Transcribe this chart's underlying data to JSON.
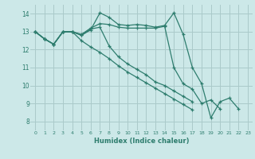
{
  "xlabel": "Humidex (Indice chaleur)",
  "bg_color": "#cce8e8",
  "grid_color": "#aacaca",
  "line_color": "#2e7d6e",
  "xlim": [
    -0.5,
    23.5
  ],
  "ylim": [
    7.5,
    14.5
  ],
  "yticks": [
    8,
    9,
    10,
    11,
    12,
    13,
    14
  ],
  "xticks": [
    0,
    1,
    2,
    3,
    4,
    5,
    6,
    7,
    8,
    9,
    10,
    11,
    12,
    13,
    14,
    15,
    16,
    17,
    18,
    19,
    20,
    21,
    22,
    23
  ],
  "series": [
    [
      13.0,
      12.6,
      12.3,
      13.0,
      13.0,
      12.8,
      13.1,
      14.05,
      13.8,
      13.4,
      13.35,
      13.4,
      13.35,
      13.25,
      13.35,
      14.05,
      12.85,
      11.0,
      10.1,
      8.2,
      9.1,
      9.3,
      8.7,
      null
    ],
    [
      13.0,
      12.6,
      12.3,
      13.0,
      13.0,
      12.8,
      13.15,
      13.25,
      12.2,
      11.6,
      11.2,
      10.9,
      10.6,
      10.2,
      10.0,
      9.7,
      9.4,
      9.1,
      null,
      null,
      null,
      null,
      null,
      null
    ],
    [
      13.0,
      12.6,
      12.3,
      13.0,
      13.0,
      12.5,
      12.15,
      11.85,
      11.5,
      11.1,
      10.75,
      10.45,
      10.15,
      9.85,
      9.55,
      9.25,
      8.95,
      8.65,
      null,
      null,
      null,
      null,
      null,
      null
    ],
    [
      13.0,
      12.6,
      12.3,
      13.0,
      13.0,
      12.85,
      13.2,
      13.45,
      13.4,
      13.25,
      13.2,
      13.2,
      13.2,
      13.2,
      13.3,
      11.0,
      10.1,
      9.8,
      9.0,
      9.2,
      8.7,
      null,
      null,
      null
    ]
  ]
}
